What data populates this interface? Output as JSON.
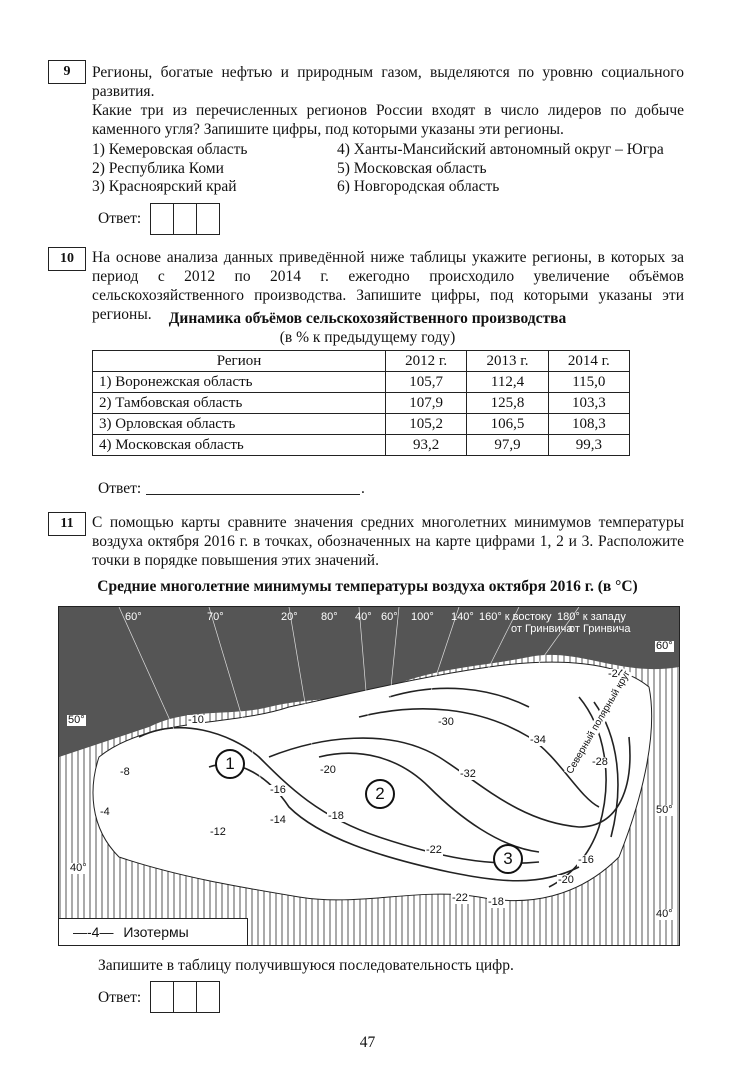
{
  "q9": {
    "number": "9",
    "text1": "Регионы, богатые нефтью и природным газом, выделяются по уровню социального развития.",
    "text2": "Какие три из перечисленных регионов России входят в число лидеров по добыче каменного угля? Запишите цифры, под которыми указаны эти регионы.",
    "options": [
      "1) Кемеровская область",
      "2) Республика Коми",
      "3) Красноярский край",
      "4) Ханты-Мансийский автономный округ – Югра",
      "5) Московская область",
      "6) Новгородская область"
    ],
    "answer_label": "Ответ:"
  },
  "q10": {
    "number": "10",
    "text": "На основе анализа данных приведённой ниже таблицы укажите регионы, в которых за период с 2012 по 2014 г. ежегодно происходило увеличение объёмов сельскохозяйственного производства. Запишите цифры, под которыми указаны эти регионы.",
    "table_title": "Динамика объёмов сельскохозяйственного производства",
    "table_subtitle": "(в % к предыдущему году)",
    "headers": [
      "Регион",
      "2012 г.",
      "2013 г.",
      "2014 г."
    ],
    "rows": [
      [
        "1) Воронежская область",
        "105,7",
        "112,4",
        "115,0"
      ],
      [
        "2) Тамбовская область",
        "107,9",
        "125,8",
        "103,3"
      ],
      [
        "3) Орловская область",
        "105,2",
        "106,5",
        "108,3"
      ],
      [
        "4) Московская область",
        "93,2",
        "97,9",
        "99,3"
      ]
    ],
    "answer_label": "Ответ:",
    "answer_tail": "."
  },
  "q11": {
    "number": "11",
    "text": "С помощью карты сравните значения средних многолетних минимумов температуры воздуха октября 2016 г. в точках, обозначенных на карте цифрами 1, 2 и 3. Расположите точки в порядке повышения этих значений.",
    "map_title": "Средние многолетние минимумы температуры воздуха октября 2016 г. (в °C)",
    "map": {
      "top_labels": [
        "60°",
        "70°",
        "20°",
        "80°",
        "40°",
        "60°",
        "100°",
        "140°",
        "160° к востоку",
        "от Гринвича",
        "180° к западу",
        "от Гринвича"
      ],
      "side_labels": [
        "60°",
        "50°",
        "40°",
        "50°",
        "40°"
      ],
      "isotherms": [
        "-10",
        "-8",
        "-4",
        "-12",
        "-14",
        "-16",
        "-20",
        "-18",
        "-22",
        "-30",
        "-32",
        "-34",
        "-24",
        "-28",
        "-20",
        "-16",
        "-18",
        "-22"
      ],
      "points": [
        "1",
        "2",
        "3"
      ],
      "arctic_circle": "Северный полярный круг",
      "legend_sample": "—-4—",
      "legend_label": "Изотермы"
    },
    "instruction": "Запишите в таблицу получившуюся последовательность цифр.",
    "answer_label": "Ответ:"
  },
  "page_number": "47"
}
